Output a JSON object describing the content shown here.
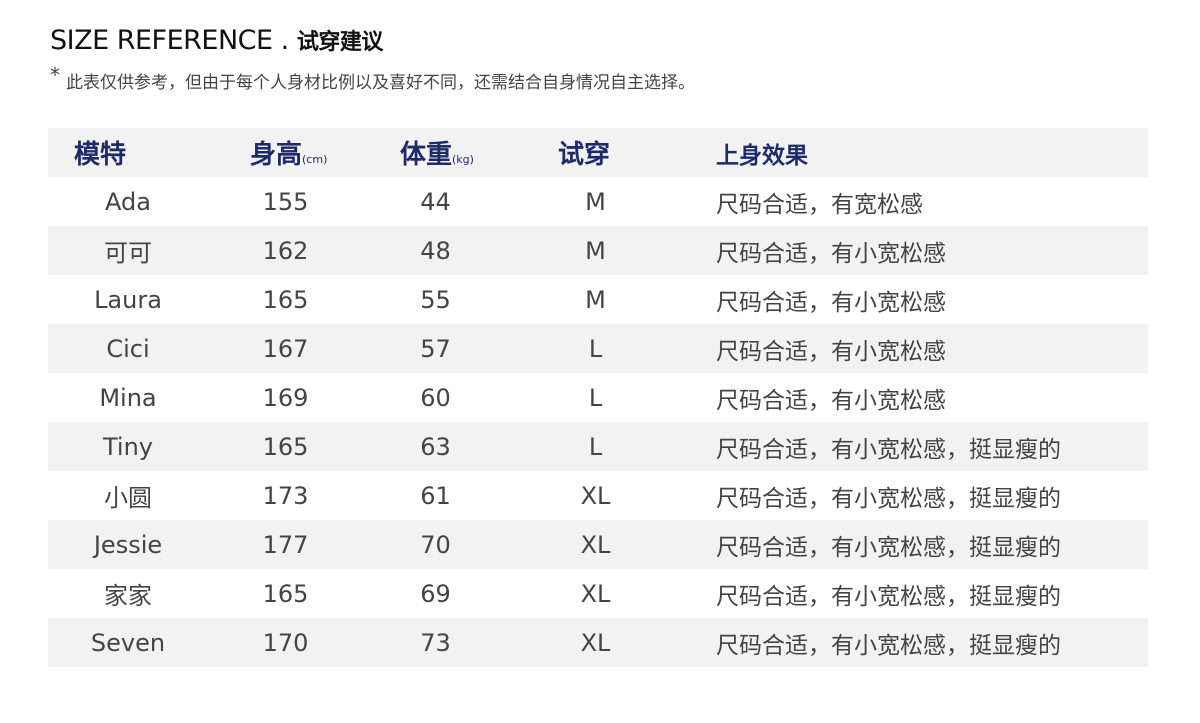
{
  "title": {
    "en": "SIZE REFERENCE .",
    "cn": "试穿建议"
  },
  "note": {
    "star": "*",
    "text": "此表仅供参考，但由于每个人身材比例以及喜好不同，还需结合自身情况自主选择。"
  },
  "colors": {
    "header_text": "#1f2a6b",
    "body_text": "#444444",
    "stripe": "#f2f2f2"
  },
  "table": {
    "headers": [
      {
        "label": "模特",
        "unit": ""
      },
      {
        "label": "身高",
        "unit": "(cm)"
      },
      {
        "label": "体重",
        "unit": "(kg)"
      },
      {
        "label": "试穿",
        "unit": ""
      },
      {
        "label": "上身效果",
        "unit": ""
      }
    ],
    "rows": [
      [
        "Ada",
        "155",
        "44",
        "M",
        "尺码合适，有宽松感"
      ],
      [
        "可可",
        "162",
        "48",
        "M",
        "尺码合适，有小宽松感"
      ],
      [
        "Laura",
        "165",
        "55",
        "M",
        "尺码合适，有小宽松感"
      ],
      [
        "Cici",
        "167",
        "57",
        "L",
        "尺码合适，有小宽松感"
      ],
      [
        "Mina",
        "169",
        "60",
        "L",
        "尺码合适，有小宽松感"
      ],
      [
        "Tiny",
        "165",
        "63",
        "L",
        "尺码合适，有小宽松感，挺显瘦的"
      ],
      [
        "小圆",
        "173",
        "61",
        "XL",
        "尺码合适，有小宽松感，挺显瘦的"
      ],
      [
        "Jessie",
        "177",
        "70",
        "XL",
        "尺码合适，有小宽松感，挺显瘦的"
      ],
      [
        "家家",
        "165",
        "69",
        "XL",
        "尺码合适，有小宽松感，挺显瘦的"
      ],
      [
        "Seven",
        "170",
        "73",
        "XL",
        "尺码合适，有小宽松感，挺显瘦的"
      ]
    ]
  }
}
